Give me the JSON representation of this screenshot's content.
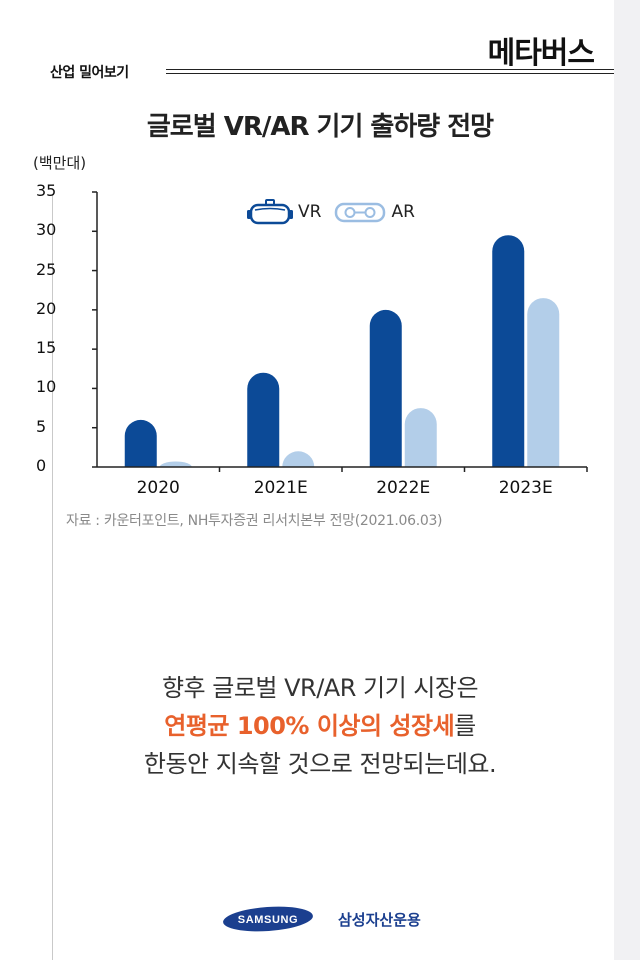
{
  "header": {
    "category": "산업 밀어보기",
    "brand_title": "메타버스"
  },
  "colors": {
    "vr": "#0c4a97",
    "ar": "#b3cee9",
    "accent": "#e8612c"
  },
  "chart_data": {
    "type": "bar",
    "title": "글로벌 VR/AR 기기 출하량 전망",
    "ylabel": "(백만대)",
    "categories": [
      "2020",
      "2021E",
      "2022E",
      "2023E"
    ],
    "series": [
      {
        "name": "VR",
        "values": [
          6,
          12,
          20,
          29.5
        ]
      },
      {
        "name": "AR",
        "values": [
          0.7,
          2,
          7.5,
          21.5
        ]
      }
    ],
    "yticks": [
      "0",
      "5",
      "10",
      "15",
      "20",
      "25",
      "30",
      "35"
    ],
    "ylim": [
      0,
      35
    ],
    "legend_position": "top-center",
    "source": "자료 : 카운터포인트, NH투자증권 리서치본부 전망(2021.06.03)"
  },
  "body": {
    "line1": "향후 글로벌 VR/AR 기기 시장은",
    "line2_accent": "연평균 100% 이상의 성장세",
    "line2_rest": "를",
    "line3": "한동안 지속할 것으로 전망되는데요."
  },
  "footer": {
    "logo_text": "SAMSUNG",
    "company": "삼성자산운용"
  }
}
